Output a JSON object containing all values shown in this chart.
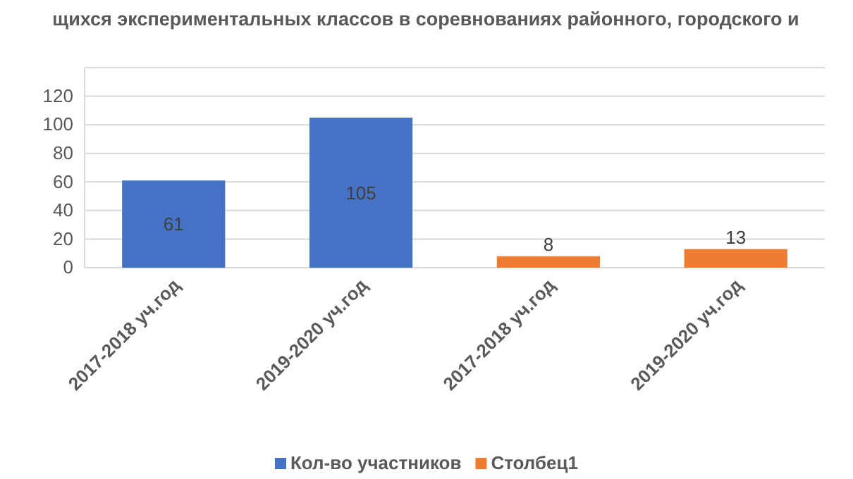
{
  "chart_data": {
    "type": "bar",
    "title": "щихся экспериментальных классов в соревнованиях районного, городского и",
    "categories": [
      "2017-2018 уч.год",
      "2019-2020 уч.год",
      "2017-2018 уч.год",
      "2019-2020 уч.год"
    ],
    "series": [
      {
        "name": "Кол-во участников",
        "color": "#4472c4",
        "values": [
          61,
          105,
          null,
          null
        ]
      },
      {
        "name": "Столбец1",
        "color": "#ed7d31",
        "values": [
          null,
          null,
          8,
          13
        ]
      }
    ],
    "ylim": [
      0,
      140
    ],
    "yticks": [
      0,
      20,
      40,
      60,
      80,
      100,
      120,
      {
        "value": 140,
        "label": null
      }
    ],
    "grid": "y",
    "legend": "bottom",
    "data_labels": true
  }
}
